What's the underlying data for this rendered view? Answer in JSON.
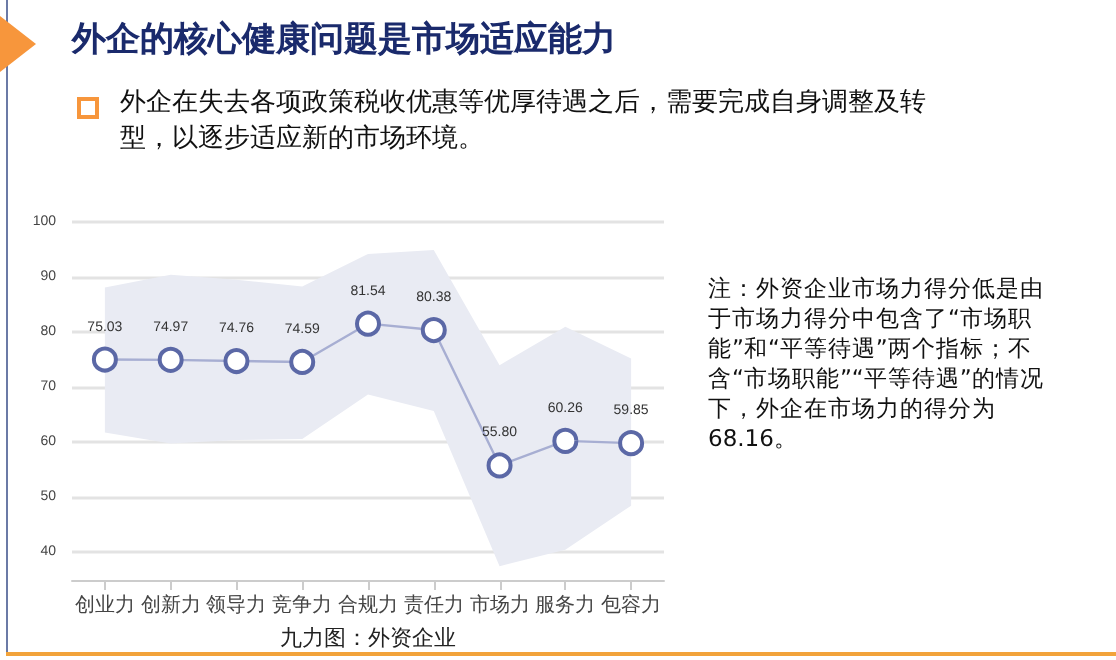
{
  "chart_data": {
    "type": "line",
    "title": "外企的核心健康问题是市场适应能力",
    "subtitle": "外企在失去各项政策税收优惠等优厚待遇之后，需要完成自身调整及转型，以逐步适应新的市场环境。",
    "xlabel": "九力图：外资企业",
    "annotations": [
      "注：外资企业市场力得分低是由于市场力得分中包含了“市场职能”和“平等待遇”两个指标；不含“市场职能”“平等待遇”的情况下，外企在市场力的得分为68.16。"
    ],
    "categories": [
      "创业力",
      "创新力",
      "领导力",
      "竞争力",
      "合规力",
      "责任力",
      "市场力",
      "服务力",
      "包容力"
    ],
    "series": [
      {
        "color": "#5b68a6",
        "values": [
          75.03,
          74.97,
          74.76,
          74.59,
          81.54,
          80.38,
          55.8,
          60.26,
          59.85
        ],
        "value_labels": [
          "75.03",
          "74.97",
          "74.76",
          "74.59",
          "81.54",
          "80.38",
          "55.80",
          "60.26",
          "59.85"
        ],
        "lower": [
          61.8,
          59.8,
          60.4,
          60.6,
          68.7,
          65.7,
          37.5,
          40.5,
          48.5
        ],
        "upper": [
          88.1,
          90.4,
          89.5,
          88.3,
          94.2,
          94.9,
          74,
          81,
          75.2
        ]
      }
    ],
    "ylim": [
      35,
      100
    ],
    "yticks": [
      40,
      50,
      60,
      70,
      80,
      90,
      100
    ],
    "grid": "y",
    "marker": "circle",
    "line_style": "solid"
  }
}
